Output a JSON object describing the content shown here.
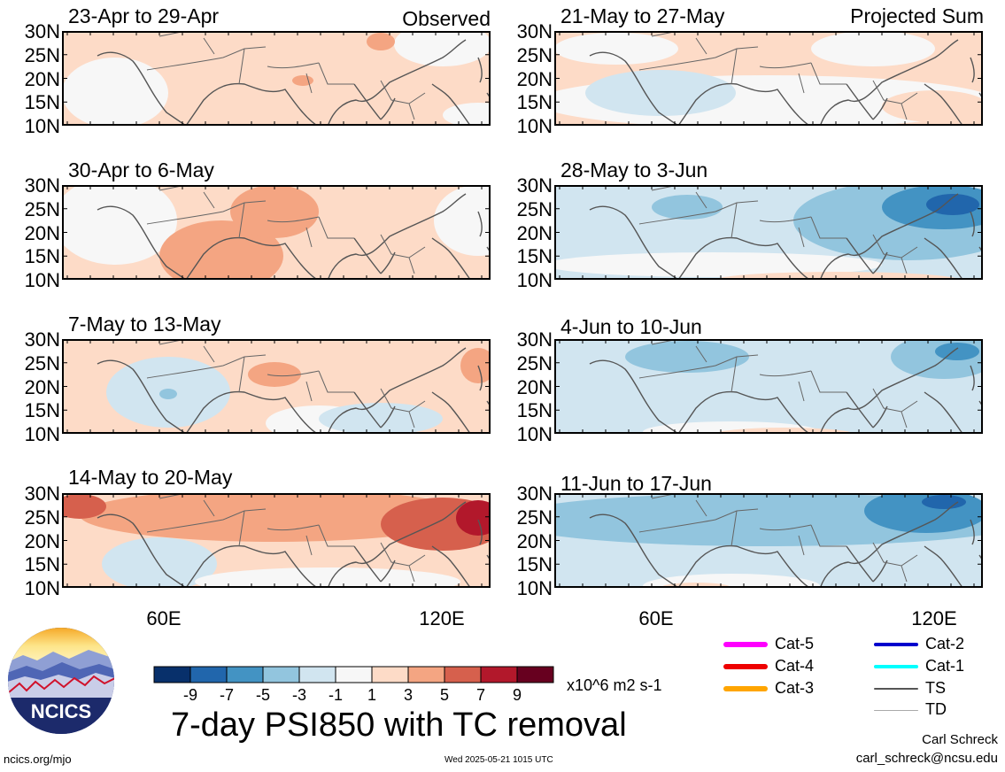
{
  "main_title": "7-day PSI850 with TC removal",
  "units": "x10^6 m2 s-1",
  "site": "ncics.org/mjo",
  "timestamp": "Wed 2025-05-21 1015 UTC",
  "credit_name": "Carl Schreck",
  "credit_email": "carl_schreck@ncsu.edu",
  "logo_text": "NCICS",
  "lat_ticks": [
    "30N",
    "25N",
    "20N",
    "15N",
    "10N"
  ],
  "lon_ticks": [
    "60E",
    "120E"
  ],
  "colorbar": {
    "labels": [
      "-9",
      "-7",
      "-5",
      "-3",
      "-1",
      "1",
      "3",
      "5",
      "7",
      "9"
    ],
    "colors": [
      "#08306b",
      "#2166ac",
      "#4393c3",
      "#92c5de",
      "#d1e5f0",
      "#f7f7f7",
      "#fddbc7",
      "#f4a582",
      "#d6604d",
      "#b2182b",
      "#67001f"
    ]
  },
  "legend": [
    {
      "label": "Cat-5",
      "color": "#ff00ff"
    },
    {
      "label": "Cat-4",
      "color": "#ee0000"
    },
    {
      "label": "Cat-3",
      "color": "#ffa500"
    },
    {
      "label": "Cat-2",
      "color": "#0000cd"
    },
    {
      "label": "Cat-1",
      "color": "#00ffff"
    },
    {
      "label": "TS",
      "color": "#555555"
    },
    {
      "label": "TD",
      "color": "#aaaaaa"
    }
  ],
  "panels": [
    {
      "title": "23-Apr to 29-Apr",
      "tag": "Observed",
      "anomaly": "weak-positive"
    },
    {
      "title": "21-May to 27-May",
      "tag": "Projected Sum",
      "anomaly": "weak-mixed"
    },
    {
      "title": "30-Apr to 6-May",
      "tag": "",
      "anomaly": "positive-central"
    },
    {
      "title": "28-May to 3-Jun",
      "tag": "",
      "anomaly": "negative-east"
    },
    {
      "title": "7-May to 13-May",
      "tag": "",
      "anomaly": "mixed"
    },
    {
      "title": "4-Jun to 10-Jun",
      "tag": "",
      "anomaly": "negative"
    },
    {
      "title": "14-May to 20-May",
      "tag": "",
      "anomaly": "strong-positive-east"
    },
    {
      "title": "11-Jun to 17-Jun",
      "tag": "",
      "anomaly": "negative-band"
    }
  ]
}
